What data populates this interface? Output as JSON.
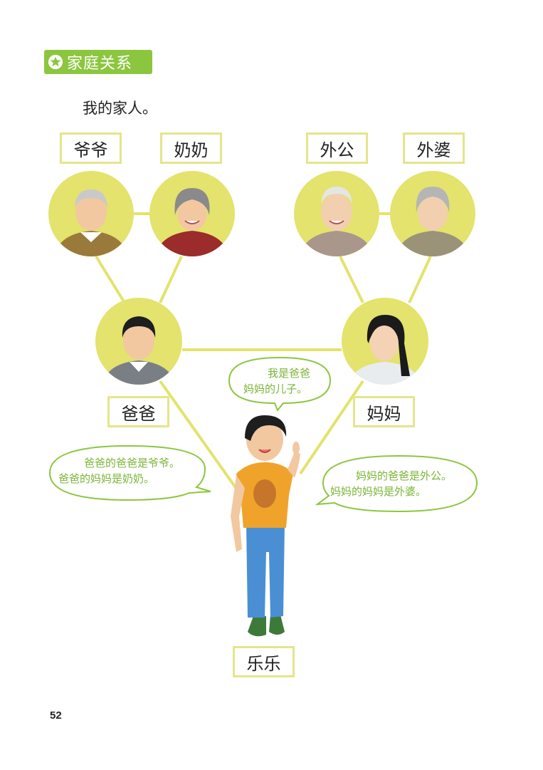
{
  "section": {
    "title": "家庭关系"
  },
  "subtitle": "我的家人。",
  "family": {
    "grandpa": "爷爷",
    "grandma": "奶奶",
    "maternal_grandpa": "外公",
    "maternal_grandma": "外婆",
    "dad": "爸爸",
    "mom": "妈妈",
    "child": "乐乐"
  },
  "bubbles": {
    "child_line1": "我是爸爸",
    "child_line2": "妈妈的儿子。",
    "dad_line1": "爸爸的爸爸是爷爷。",
    "dad_line2": "爸爸的妈妈是奶奶。",
    "mom_line1": "妈妈的爸爸是外公。",
    "mom_line2": "妈妈的妈妈是外婆。"
  },
  "page_number": "52",
  "colors": {
    "accent_green": "#8cc63f",
    "circle_yellow": "#e3e36d",
    "label_border": "#e4e58c",
    "bubble_text": "#7ab435"
  }
}
